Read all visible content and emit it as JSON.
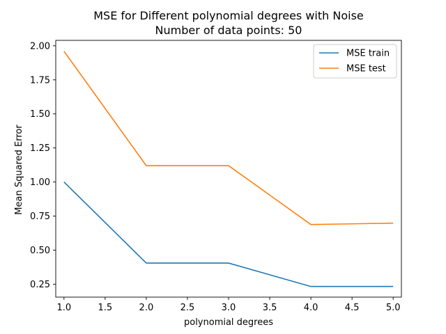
{
  "chart_data": {
    "type": "line",
    "title": "MSE for Different polynomial degrees with Noise",
    "subtitle": "Number of data points: 50",
    "xlabel": "polynomial degrees",
    "ylabel": "Mean Squared Error",
    "x": [
      1.0,
      2.0,
      3.0,
      4.0,
      5.0
    ],
    "xlim": [
      0.9,
      5.1
    ],
    "ylim": [
      0.155,
      2.04
    ],
    "xticks": [
      1.0,
      1.5,
      2.0,
      2.5,
      3.0,
      3.5,
      4.0,
      4.5,
      5.0
    ],
    "xtick_labels": [
      "1.0",
      "1.5",
      "2.0",
      "2.5",
      "3.0",
      "3.5",
      "4.0",
      "4.5",
      "5.0"
    ],
    "yticks": [
      0.25,
      0.5,
      0.75,
      1.0,
      1.25,
      1.5,
      1.75,
      2.0
    ],
    "ytick_labels": [
      "0.25",
      "0.50",
      "0.75",
      "1.00",
      "1.25",
      "1.50",
      "1.75",
      "2.00"
    ],
    "grid": false,
    "legend": "top-right",
    "series": [
      {
        "name": "MSE train",
        "color": "#1f77b4",
        "values": [
          1.0,
          0.405,
          0.405,
          0.233,
          0.233
        ]
      },
      {
        "name": "MSE test",
        "color": "#ff7f0e",
        "values": [
          1.96,
          1.12,
          1.12,
          0.688,
          0.698
        ]
      }
    ]
  }
}
